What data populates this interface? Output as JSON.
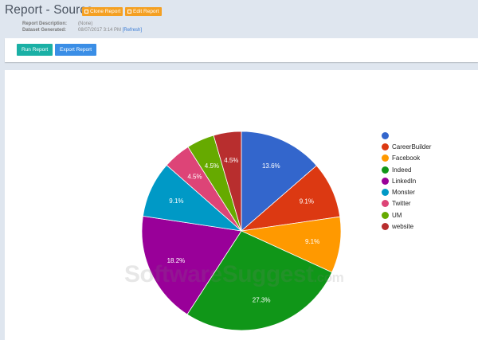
{
  "header": {
    "title": "Report - Source",
    "clone_label": "Clone Report",
    "edit_label": "Edit Report",
    "description_key": "Report Description:",
    "description_value": "(None)",
    "generated_key": "Dataset Generated:",
    "generated_value": "08/07/2017 3:14 PM",
    "refresh_label": "[Refresh]"
  },
  "toolbar": {
    "run_label": "Run Report",
    "export_label": "Export Report"
  },
  "colors": {
    "header_button": "#f4a023",
    "run_button": "#1ab0a5",
    "export_button": "#3a8ee6",
    "page_bg": "#dfe6ef"
  },
  "watermark": {
    "main": "SoftwareSuggest",
    "suffix": ".com"
  },
  "chart_data": {
    "type": "pie",
    "title": "",
    "legend_position": "right",
    "categories": [
      "",
      "CareerBuilder",
      "Facebook",
      "Indeed",
      "LinkedIn",
      "Monster",
      "Twitter",
      "UM",
      "website"
    ],
    "values": [
      13.6,
      9.1,
      9.1,
      27.3,
      18.2,
      9.1,
      4.5,
      4.5,
      4.5
    ],
    "labels": [
      "13.6%",
      "9.1%",
      "9.1%",
      "27.3%",
      "18.2%",
      "9.1%",
      "4.5%",
      "4.5%",
      "4.5%"
    ],
    "colors": [
      "#3366cc",
      "#dc3912",
      "#ff9900",
      "#109618",
      "#990099",
      "#0099c6",
      "#dd4477",
      "#66aa00",
      "#b82e2e"
    ]
  }
}
